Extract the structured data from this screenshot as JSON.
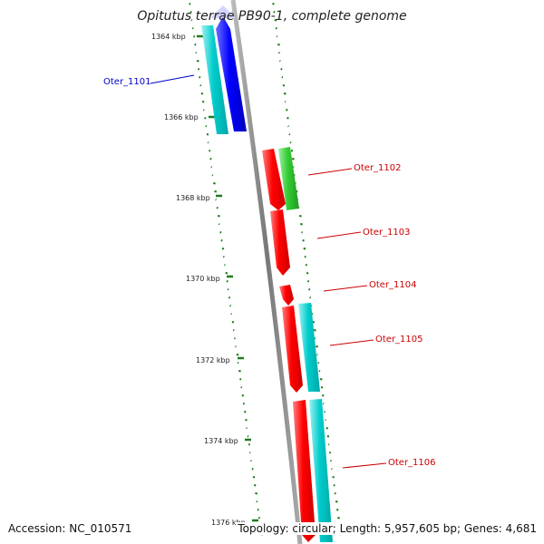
{
  "title": "Opitutus terrae PB90-1, complete genome",
  "accession": "Accession: NC_010571",
  "topology": "Topology: circular; Length: 5,957,605 bp; Genes: 4,681",
  "ticks": [
    "1364 kbp",
    "1366 kbp",
    "1368 kbp",
    "1370 kbp",
    "1372 kbp",
    "1374 kbp",
    "1376 kbp"
  ],
  "genes": [
    {
      "label": "Oter_1101",
      "color": "#0000cc"
    },
    {
      "label": "Oter_1102",
      "color": "#cc0000"
    },
    {
      "label": "Oter_1103",
      "color": "#cc0000"
    },
    {
      "label": "Oter_1104",
      "color": "#cc0000"
    },
    {
      "label": "Oter_1105",
      "color": "#cc0000"
    },
    {
      "label": "Oter_1106",
      "color": "#cc0000"
    }
  ],
  "colors": {
    "cyan": "#00c8c8",
    "blue": "#0000ff",
    "red": "#ff0000",
    "green": "#33cc33",
    "gc_skew": "#1e7a1e",
    "backbone": "#808080"
  }
}
